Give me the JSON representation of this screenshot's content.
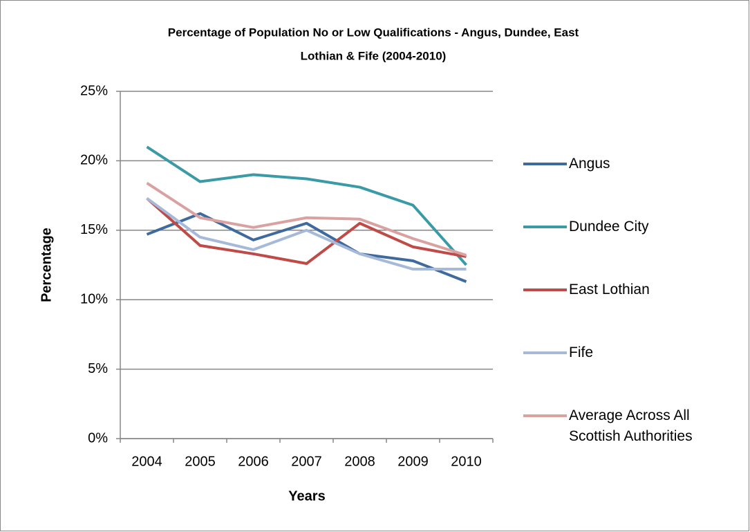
{
  "chart_data": {
    "type": "line",
    "title_lines": [
      "Percentage of Population No or Low Qualifications - Angus, Dundee, East",
      "Lothian & Fife (2004-2010)"
    ],
    "x_label": "Years",
    "y_label": "Percentage",
    "categories": [
      "2004",
      "2005",
      "2006",
      "2007",
      "2008",
      "2009",
      "2010"
    ],
    "series": [
      {
        "name": "Angus",
        "color": "#3f6a9e",
        "values": [
          14.7,
          16.2,
          14.3,
          15.5,
          13.3,
          12.8,
          11.3
        ]
      },
      {
        "name": "Dundee City",
        "color": "#3a9aa6",
        "values": [
          21.0,
          18.5,
          19.0,
          18.7,
          18.1,
          16.8,
          12.5
        ]
      },
      {
        "name": "East Lothian",
        "color": "#be4b48",
        "values": [
          17.3,
          13.9,
          13.3,
          12.6,
          15.5,
          13.8,
          13.1
        ]
      },
      {
        "name": "Fife",
        "color": "#a6b9d9",
        "values": [
          17.3,
          14.5,
          13.6,
          15.0,
          13.3,
          12.2,
          12.2
        ]
      },
      {
        "name": "Average Across All Scottish Authorities",
        "color": "#d9a2a1",
        "values": [
          18.4,
          15.9,
          15.2,
          15.9,
          15.8,
          14.4,
          13.2
        ]
      }
    ],
    "ylim": [
      0,
      25
    ],
    "yticks": [
      {
        "value": 0,
        "label": "0%"
      },
      {
        "value": 5,
        "label": "5%"
      },
      {
        "value": 10,
        "label": "10%"
      },
      {
        "value": 15,
        "label": "15%"
      },
      {
        "value": 20,
        "label": "20%"
      },
      {
        "value": 25,
        "label": "25%"
      }
    ],
    "grid": true,
    "legend": "right"
  }
}
